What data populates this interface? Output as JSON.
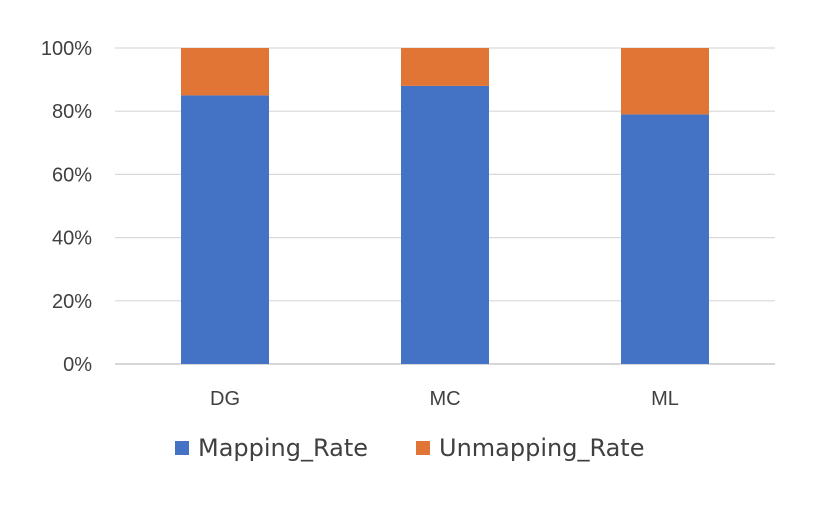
{
  "chart_data": {
    "type": "bar",
    "stacked": true,
    "percent_stacked": true,
    "categories": [
      "DG",
      "MC",
      "ML"
    ],
    "series": [
      {
        "name": "Mapping_Rate",
        "values": [
          85,
          88,
          79
        ],
        "color": "#4472C4"
      },
      {
        "name": "Unmapping_Rate",
        "values": [
          15,
          12,
          21
        ],
        "color": "#E07535"
      }
    ],
    "y_ticks": [
      "0%",
      "20%",
      "40%",
      "60%",
      "80%",
      "100%"
    ],
    "ylim": [
      0,
      100
    ],
    "grid": true,
    "legend_position": "bottom",
    "colors": {
      "grid": "#D9D9D9",
      "axis": "#BFBFBF",
      "text": "#404040"
    }
  }
}
